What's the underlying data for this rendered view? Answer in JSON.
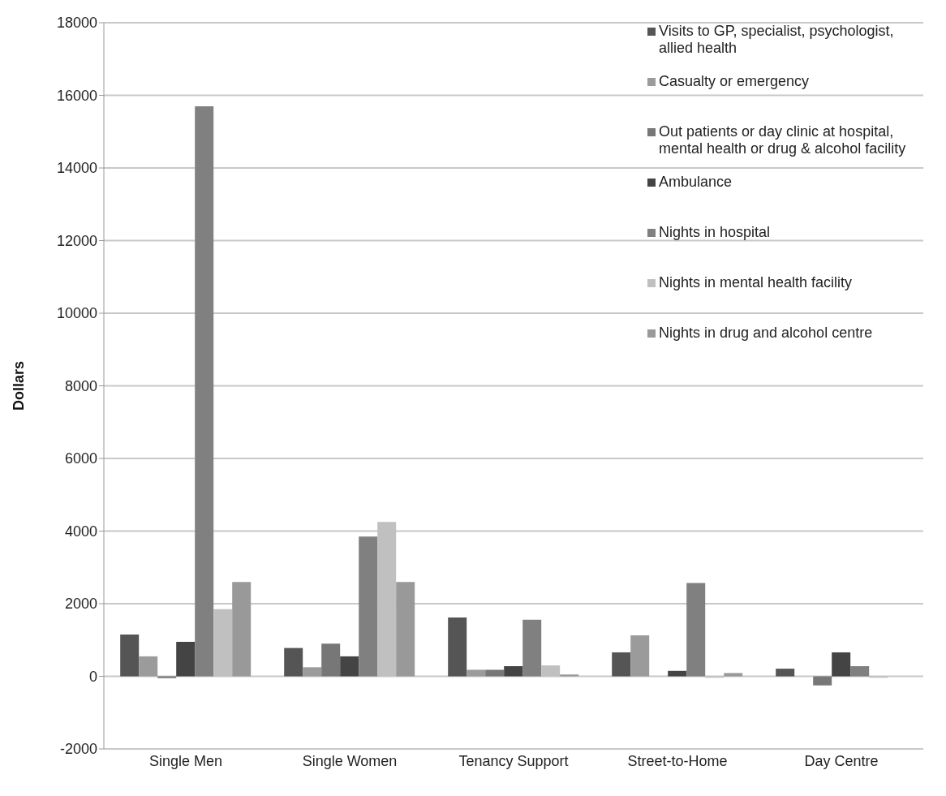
{
  "chart_data": {
    "type": "bar",
    "ylabel": "Dollars",
    "categories": [
      "Single Men",
      "Single Women",
      "Tenancy Support",
      "Street-to-Home",
      "Day Centre"
    ],
    "series": [
      {
        "name": "Visits to GP, specialist, psychologist, allied health",
        "color": "#555555",
        "values": [
          1150,
          780,
          1620,
          660,
          210
        ]
      },
      {
        "name": "Casualty or emergency",
        "color": "#9b9b9b",
        "values": [
          550,
          250,
          180,
          1130,
          0
        ]
      },
      {
        "name": "Out patients or day clinic at hospital, mental health or drug & alcohol facility",
        "color": "#777777",
        "values": [
          -50,
          900,
          180,
          0,
          -250
        ]
      },
      {
        "name": "Ambulance",
        "color": "#444444",
        "values": [
          950,
          550,
          280,
          150,
          660
        ]
      },
      {
        "name": "Nights in hospital",
        "color": "#808080",
        "values": [
          15700,
          3850,
          1560,
          2570,
          280
        ]
      },
      {
        "name": "Nights in mental health facility",
        "color": "#c0c0c0",
        "values": [
          1850,
          4250,
          300,
          -40,
          -40
        ]
      },
      {
        "name": "Nights in drug and alcohol centre",
        "color": "#999999",
        "values": [
          2600,
          2600,
          50,
          90,
          0
        ]
      }
    ],
    "ylim": [
      -2000,
      18000
    ],
    "yticks": [
      -2000,
      0,
      2000,
      4000,
      6000,
      8000,
      10000,
      12000,
      14000,
      16000,
      18000
    ],
    "grid": "y",
    "legend": "top right"
  }
}
